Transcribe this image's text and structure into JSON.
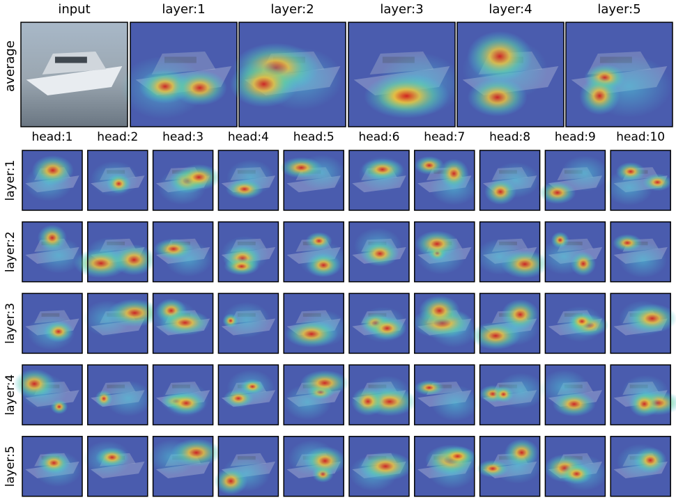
{
  "average_row": {
    "label": "average",
    "columns": [
      "input",
      "layer:1",
      "layer:2",
      "layer:3",
      "layer:4",
      "layer:5"
    ]
  },
  "heads_grid": {
    "columns": [
      "head:1",
      "head:2",
      "head:3",
      "head:4",
      "head:5",
      "head:6",
      "head:7",
      "head:8",
      "head:9",
      "head:10"
    ],
    "rows": [
      "layer:1",
      "layer:2",
      "layer:3",
      "layer:4",
      "layer:5"
    ]
  }
}
